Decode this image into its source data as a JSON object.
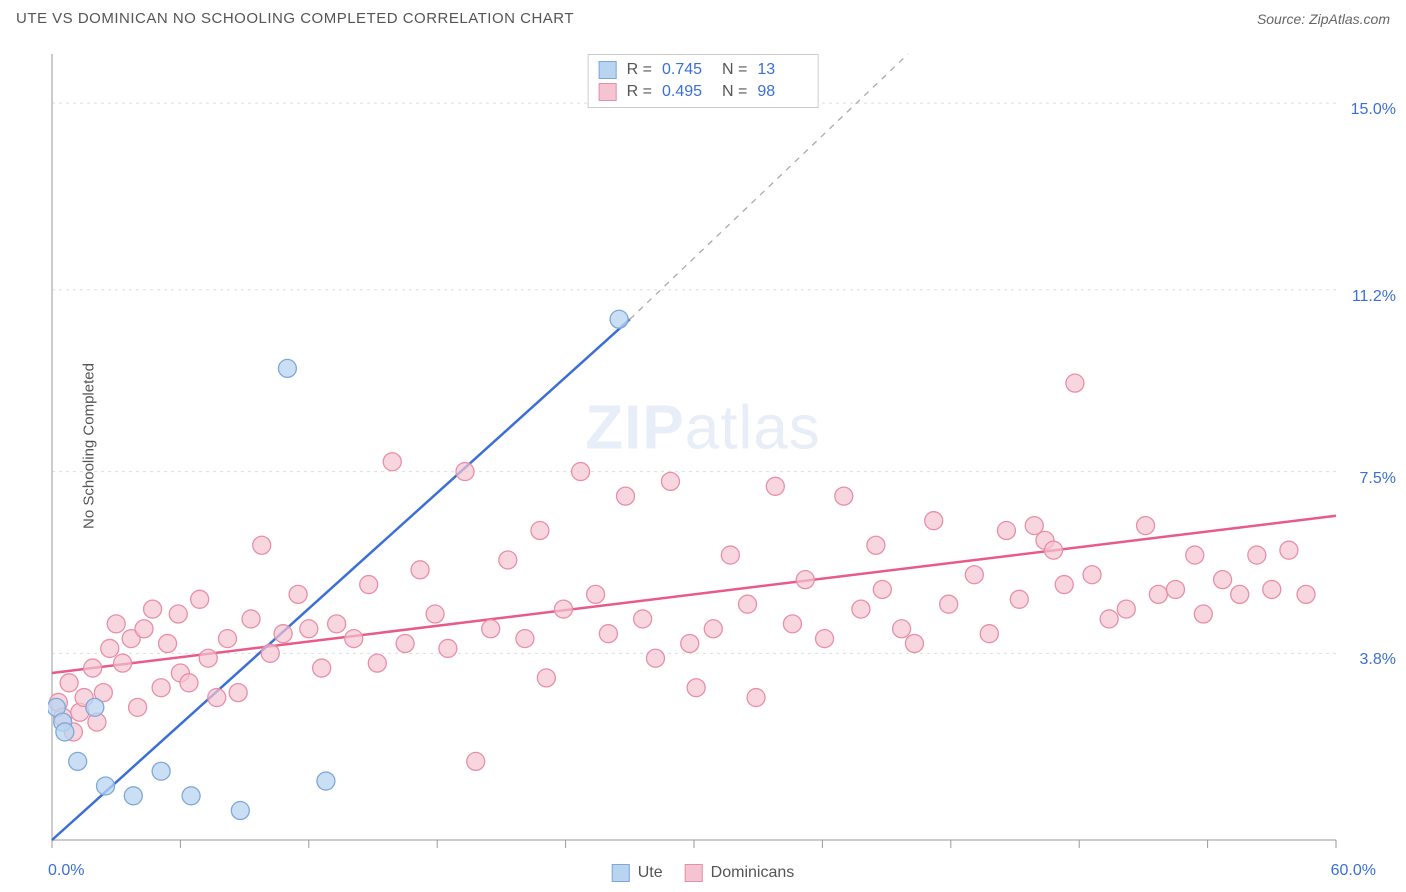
{
  "header": {
    "title": "UTE VS DOMINICAN NO SCHOOLING COMPLETED CORRELATION CHART",
    "source": "Source: ZipAtlas.com"
  },
  "y_axis_label": "No Schooling Completed",
  "watermark": {
    "bold": "ZIP",
    "rest": "atlas"
  },
  "chart": {
    "type": "scatter",
    "xlim": [
      0,
      60
    ],
    "ylim": [
      0,
      16
    ],
    "x_ticks": [
      0,
      6,
      12,
      18,
      24,
      30,
      36,
      42,
      48,
      54,
      60
    ],
    "y_gridlines": [
      3.8,
      7.5,
      11.2,
      15.0
    ],
    "x_axis_labels": {
      "min": "0.0%",
      "max": "60.0%"
    },
    "y_axis_labels": [
      "3.8%",
      "7.5%",
      "11.2%",
      "15.0%"
    ],
    "background_color": "#ffffff",
    "grid_color": "#dddddd",
    "axis_color": "#bbbbbb",
    "tick_color": "#999999",
    "axis_label_color": "#3b6fd6",
    "series": [
      {
        "name": "Ute",
        "marker_fill": "#b8d4f0",
        "marker_stroke": "#7fa8d8",
        "marker_opacity": 0.75,
        "marker_radius": 9,
        "line_color": "#3b6fd6",
        "line_width": 2.5,
        "dash_color": "#aaaaaa",
        "R": "0.745",
        "N": "13",
        "trend": {
          "x1": 0,
          "y1": 0,
          "x2": 27,
          "y2": 10.6,
          "dash_x2": 40,
          "dash_y2": 16
        },
        "points": [
          [
            0.2,
            2.7
          ],
          [
            0.5,
            2.4
          ],
          [
            0.6,
            2.2
          ],
          [
            1.2,
            1.6
          ],
          [
            2.0,
            2.7
          ],
          [
            2.5,
            1.1
          ],
          [
            3.8,
            0.9
          ],
          [
            5.1,
            1.4
          ],
          [
            6.5,
            0.9
          ],
          [
            8.8,
            0.6
          ],
          [
            11.0,
            9.6
          ],
          [
            12.8,
            1.2
          ],
          [
            26.5,
            10.6
          ]
        ]
      },
      {
        "name": "Dominicans",
        "marker_fill": "#f5c4d2",
        "marker_stroke": "#e88fa8",
        "marker_opacity": 0.7,
        "marker_radius": 9,
        "line_color": "#e85a8a",
        "line_width": 2.5,
        "R": "0.495",
        "N": "98",
        "trend": {
          "x1": 0,
          "y1": 3.4,
          "x2": 60,
          "y2": 6.6
        },
        "points": [
          [
            0.3,
            2.8
          ],
          [
            0.5,
            2.5
          ],
          [
            0.8,
            3.2
          ],
          [
            1.0,
            2.2
          ],
          [
            1.3,
            2.6
          ],
          [
            1.5,
            2.9
          ],
          [
            1.9,
            3.5
          ],
          [
            2.1,
            2.4
          ],
          [
            2.4,
            3.0
          ],
          [
            2.7,
            3.9
          ],
          [
            3.0,
            4.4
          ],
          [
            3.3,
            3.6
          ],
          [
            3.7,
            4.1
          ],
          [
            4.0,
            2.7
          ],
          [
            4.3,
            4.3
          ],
          [
            4.7,
            4.7
          ],
          [
            5.1,
            3.1
          ],
          [
            5.4,
            4.0
          ],
          [
            5.9,
            4.6
          ],
          [
            6.0,
            3.4
          ],
          [
            6.4,
            3.2
          ],
          [
            6.9,
            4.9
          ],
          [
            7.3,
            3.7
          ],
          [
            7.7,
            2.9
          ],
          [
            8.2,
            4.1
          ],
          [
            8.7,
            3.0
          ],
          [
            9.3,
            4.5
          ],
          [
            9.8,
            6.0
          ],
          [
            10.2,
            3.8
          ],
          [
            10.8,
            4.2
          ],
          [
            11.5,
            5.0
          ],
          [
            12.0,
            4.3
          ],
          [
            12.6,
            3.5
          ],
          [
            13.3,
            4.4
          ],
          [
            14.1,
            4.1
          ],
          [
            14.8,
            5.2
          ],
          [
            15.2,
            3.6
          ],
          [
            15.9,
            7.7
          ],
          [
            16.5,
            4.0
          ],
          [
            17.2,
            5.5
          ],
          [
            17.9,
            4.6
          ],
          [
            18.5,
            3.9
          ],
          [
            19.3,
            7.5
          ],
          [
            19.8,
            1.6
          ],
          [
            20.5,
            4.3
          ],
          [
            21.3,
            5.7
          ],
          [
            22.1,
            4.1
          ],
          [
            22.8,
            6.3
          ],
          [
            23.1,
            3.3
          ],
          [
            23.9,
            4.7
          ],
          [
            24.7,
            7.5
          ],
          [
            25.4,
            5.0
          ],
          [
            26.0,
            4.2
          ],
          [
            26.8,
            7.0
          ],
          [
            27.6,
            4.5
          ],
          [
            28.2,
            3.7
          ],
          [
            28.9,
            7.3
          ],
          [
            29.8,
            4.0
          ],
          [
            30.1,
            3.1
          ],
          [
            30.9,
            4.3
          ],
          [
            31.7,
            5.8
          ],
          [
            32.5,
            4.8
          ],
          [
            32.9,
            2.9
          ],
          [
            33.8,
            7.2
          ],
          [
            34.6,
            4.4
          ],
          [
            35.2,
            5.3
          ],
          [
            36.1,
            4.1
          ],
          [
            37.0,
            7.0
          ],
          [
            37.8,
            4.7
          ],
          [
            38.5,
            6.0
          ],
          [
            38.8,
            5.1
          ],
          [
            39.7,
            4.3
          ],
          [
            40.3,
            4.0
          ],
          [
            41.2,
            6.5
          ],
          [
            41.9,
            4.8
          ],
          [
            43.1,
            5.4
          ],
          [
            43.8,
            4.2
          ],
          [
            44.6,
            6.3
          ],
          [
            45.2,
            4.9
          ],
          [
            45.9,
            6.4
          ],
          [
            46.4,
            6.1
          ],
          [
            46.8,
            5.9
          ],
          [
            47.3,
            5.2
          ],
          [
            47.8,
            9.3
          ],
          [
            48.6,
            5.4
          ],
          [
            49.4,
            4.5
          ],
          [
            50.2,
            4.7
          ],
          [
            51.1,
            6.4
          ],
          [
            51.7,
            5.0
          ],
          [
            52.5,
            5.1
          ],
          [
            53.4,
            5.8
          ],
          [
            53.8,
            4.6
          ],
          [
            54.7,
            5.3
          ],
          [
            55.5,
            5.0
          ],
          [
            56.3,
            5.8
          ],
          [
            57.0,
            5.1
          ],
          [
            57.8,
            5.9
          ],
          [
            58.6,
            5.0
          ]
        ]
      }
    ]
  },
  "stats_box": {
    "rows": [
      {
        "swatch_fill": "#b8d4f0",
        "swatch_stroke": "#7fa8d8",
        "R_label": "R =",
        "R": "0.745",
        "N_label": "N =",
        "N": "13"
      },
      {
        "swatch_fill": "#f5c4d2",
        "swatch_stroke": "#e88fa8",
        "R_label": "R =",
        "R": "0.495",
        "N_label": "N =",
        "N": "98"
      }
    ]
  },
  "legend": {
    "items": [
      {
        "swatch_fill": "#b8d4f0",
        "swatch_stroke": "#7fa8d8",
        "label": "Ute"
      },
      {
        "swatch_fill": "#f5c4d2",
        "swatch_stroke": "#e88fa8",
        "label": "Dominicans"
      }
    ]
  }
}
